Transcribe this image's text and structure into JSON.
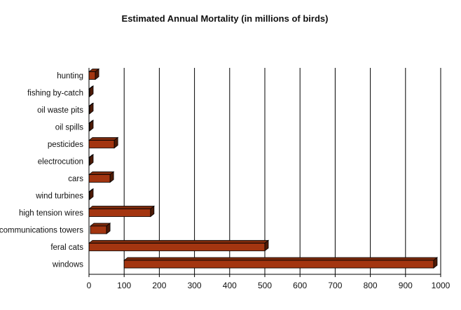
{
  "chart_data": {
    "type": "bar",
    "orientation": "horizontal",
    "style": "3d",
    "title": "Estimated Annual Mortality (in millions of birds)",
    "xlabel": "",
    "ylabel": "",
    "xlim": [
      0,
      1000
    ],
    "x_ticks": [
      "0",
      "100",
      "200",
      "300",
      "400",
      "500",
      "600",
      "700",
      "800",
      "900",
      "1000"
    ],
    "grid": "vertical",
    "legend": "none",
    "bar_color": "#a33510",
    "bars": [
      {
        "category": "hunting",
        "start": 0,
        "end": 18
      },
      {
        "category": "fishing by-catch",
        "start": 0,
        "end": 1
      },
      {
        "category": "oil waste pits",
        "start": 0,
        "end": 2
      },
      {
        "category": "oil spills",
        "start": 0,
        "end": 0.5
      },
      {
        "category": "pesticides",
        "start": 0,
        "end": 72
      },
      {
        "category": "electrocution",
        "start": 0,
        "end": 1
      },
      {
        "category": "cars",
        "start": 0,
        "end": 60
      },
      {
        "category": "wind turbines",
        "start": 0,
        "end": 0.5
      },
      {
        "category": "high tension wires",
        "start": 0,
        "end": 175
      },
      {
        "category": "communications towers",
        "start": 4,
        "end": 50
      },
      {
        "category": "feral cats",
        "start": 0,
        "end": 500
      },
      {
        "category": "windows",
        "start": 100,
        "end": 980
      }
    ]
  }
}
